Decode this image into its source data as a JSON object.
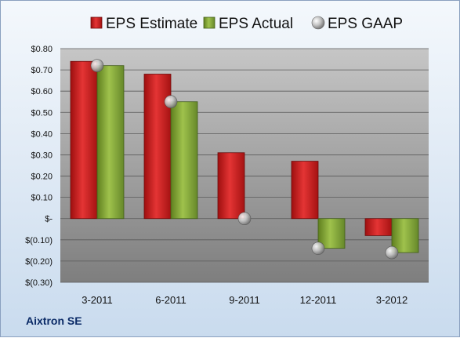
{
  "chart_data": {
    "type": "bar",
    "categories": [
      "3-2011",
      "6-2011",
      "9-2011",
      "12-2011",
      "3-2012"
    ],
    "series": [
      {
        "name": "EPS Estimate",
        "values": [
          0.74,
          0.68,
          0.31,
          0.27,
          -0.08
        ],
        "color": "#d42020",
        "kind": "bar"
      },
      {
        "name": "EPS Actual",
        "values": [
          0.72,
          0.55,
          null,
          -0.14,
          -0.16
        ],
        "color": "#8db03c",
        "kind": "bar"
      },
      {
        "name": "EPS GAAP",
        "values": [
          0.72,
          0.55,
          0.0,
          -0.14,
          -0.16
        ],
        "color": "#b8b8b8",
        "kind": "marker"
      }
    ],
    "ylim": [
      -0.3,
      0.8
    ],
    "yticks": [
      {
        "value": 0.8,
        "label": "$0.80"
      },
      {
        "value": 0.7,
        "label": "$0.70"
      },
      {
        "value": 0.6,
        "label": "$0.60"
      },
      {
        "value": 0.5,
        "label": "$0.50"
      },
      {
        "value": 0.4,
        "label": "$0.40"
      },
      {
        "value": 0.3,
        "label": "$0.30"
      },
      {
        "value": 0.2,
        "label": "$0.20"
      },
      {
        "value": 0.1,
        "label": "$0.10"
      },
      {
        "value": 0.0,
        "label": "$-"
      },
      {
        "value": -0.1,
        "label": "$(0.10)"
      },
      {
        "value": -0.2,
        "label": "$(0.20)"
      },
      {
        "value": -0.3,
        "label": "$(0.30)"
      }
    ],
    "grid": true,
    "legend": "top"
  },
  "footer": {
    "company": "Aixtron SE"
  }
}
